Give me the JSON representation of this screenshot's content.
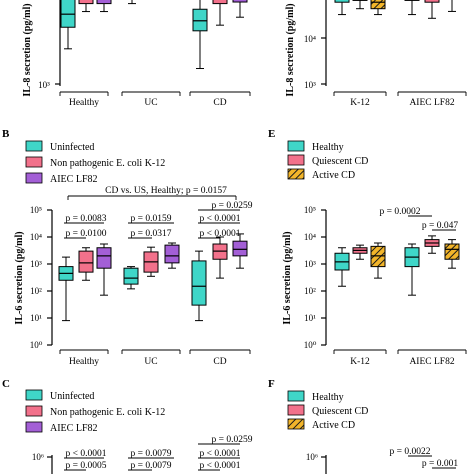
{
  "colors": {
    "uninfected": "#3fd6c8",
    "k12": "#f2718b",
    "lf82": "#a35fd6",
    "healthy": "#3fd6c8",
    "quiescent": "#f2718b",
    "active": "#f2b52a"
  },
  "panel_labels": {
    "B": "B",
    "C": "C",
    "E": "E",
    "F": "F"
  },
  "legends": {
    "left": [
      "Uninfected",
      "Non pathogenic E. coli K-12",
      "AIEC LF82"
    ],
    "right": [
      "Healthy",
      "Quiescent CD",
      "Active CD"
    ]
  },
  "chart_data": [
    {
      "id": "top-left",
      "type": "box",
      "ylabel": "IL-8 secretion (pg/ml)",
      "scale": "log",
      "yticks": [
        "10³"
      ],
      "groups": [
        "Healthy",
        "UC",
        "CD"
      ],
      "series": [
        "Uninfected",
        "Non pathogenic E. coli K-12",
        "AIEC LF82"
      ],
      "boxes": [
        {
          "group": "Healthy",
          "series": "Uninfected",
          "min": 6000,
          "q1": 18000,
          "med": 35000,
          "q3": 90000,
          "max": 150000
        },
        {
          "group": "Healthy",
          "series": "Non pathogenic E. coli K-12",
          "min": 40000,
          "q1": 60000,
          "med": 80000,
          "q3": 100000,
          "max": 160000
        },
        {
          "group": "Healthy",
          "series": "AIEC LF82",
          "min": 40000,
          "q1": 60000,
          "med": 80000,
          "q3": 110000,
          "max": 170000
        },
        {
          "group": "UC",
          "series": "Uninfected",
          "min": 60000,
          "q1": 75000,
          "med": 85000,
          "q3": 95000,
          "max": 140000
        },
        {
          "group": "CD",
          "series": "Uninfected",
          "min": 2200,
          "q1": 15000,
          "med": 25000,
          "q3": 45000,
          "max": 120000
        },
        {
          "group": "CD",
          "series": "Non pathogenic E. coli K-12",
          "min": 20000,
          "q1": 60000,
          "med": 85000,
          "q3": 110000,
          "max": 160000
        },
        {
          "group": "CD",
          "series": "AIEC LF82",
          "min": 30000,
          "q1": 65000,
          "med": 90000,
          "q3": 120000,
          "max": 170000
        }
      ]
    },
    {
      "id": "top-right",
      "type": "box",
      "ylabel": "IL-8 secretion (pg/ml)",
      "scale": "log",
      "yticks": [
        "10⁴",
        "10³"
      ],
      "groups": [
        "K-12",
        "AIEC LF82"
      ],
      "series": [
        "Healthy",
        "Quiescent CD",
        "Active CD"
      ],
      "boxes": [
        {
          "group": "K-12",
          "series": "Healthy",
          "min": 30000,
          "q1": 55000,
          "med": 75000,
          "q3": 100000,
          "max": 130000
        },
        {
          "group": "K-12",
          "series": "Quiescent CD",
          "min": 40000,
          "q1": 60000,
          "med": 75000,
          "q3": 100000,
          "max": 130000
        },
        {
          "group": "K-12",
          "series": "Active CD",
          "min": 30000,
          "q1": 40000,
          "med": 55000,
          "q3": 90000,
          "max": 120000
        },
        {
          "group": "AIEC LF82",
          "series": "Healthy",
          "min": 30000,
          "q1": 60000,
          "med": 75000,
          "q3": 100000,
          "max": 130000
        },
        {
          "group": "AIEC LF82",
          "series": "Quiescent CD",
          "min": 25000,
          "q1": 55000,
          "med": 75000,
          "q3": 100000,
          "max": 130000
        },
        {
          "group": "AIEC LF82",
          "series": "Active CD",
          "min": 35000,
          "q1": 70000,
          "med": 85000,
          "q3": 110000,
          "max": 140000
        }
      ]
    },
    {
      "id": "panel-B",
      "type": "box",
      "ylabel": "IL-6 secretion (pg/ml)",
      "scale": "log",
      "ylim": [
        1,
        100000
      ],
      "yticks": [
        "10⁰",
        "10¹",
        "10²",
        "10³",
        "10⁴",
        "10⁵"
      ],
      "groups": [
        "Healthy",
        "UC",
        "CD"
      ],
      "series": [
        "Uninfected",
        "Non pathogenic E. coli K-12",
        "AIEC LF82"
      ],
      "boxes": [
        {
          "group": "Healthy",
          "series": "Uninfected",
          "min": 8,
          "q1": 250,
          "med": 450,
          "q3": 800,
          "max": 1800
        },
        {
          "group": "Healthy",
          "series": "Non pathogenic E. coli K-12",
          "min": 250,
          "q1": 500,
          "med": 1100,
          "q3": 3000,
          "max": 4000
        },
        {
          "group": "Healthy",
          "series": "AIEC LF82",
          "min": 70,
          "q1": 700,
          "med": 2000,
          "q3": 4000,
          "max": 5500
        },
        {
          "group": "UC",
          "series": "Uninfected",
          "min": 120,
          "q1": 180,
          "med": 300,
          "q3": 700,
          "max": 800
        },
        {
          "group": "UC",
          "series": "Non pathogenic E. coli K-12",
          "min": 350,
          "q1": 500,
          "med": 1200,
          "q3": 2800,
          "max": 4200
        },
        {
          "group": "UC",
          "series": "AIEC LF82",
          "min": 700,
          "q1": 1100,
          "med": 2000,
          "q3": 5000,
          "max": 6000
        },
        {
          "group": "CD",
          "series": "Uninfected",
          "min": 8,
          "q1": 30,
          "med": 150,
          "q3": 1300,
          "max": 3000
        },
        {
          "group": "CD",
          "series": "Non pathogenic E. coli K-12",
          "min": 300,
          "q1": 1500,
          "med": 3000,
          "q3": 5500,
          "max": 10000
        },
        {
          "group": "CD",
          "series": "AIEC LF82",
          "min": 700,
          "q1": 2000,
          "med": 3500,
          "q3": 7000,
          "max": 13000
        }
      ],
      "annotations": [
        "CD vs. US, Healthy; p = 0.0157",
        "p = 0.0083",
        "p = 0.0100",
        "p = 0.0159",
        "p = 0.0317",
        "p = 0.0259",
        "p < 0.0001",
        "p < 0.0001"
      ]
    },
    {
      "id": "panel-E",
      "type": "box",
      "ylabel": "IL-6 secretion (pg/ml)",
      "scale": "log",
      "ylim": [
        1,
        100000
      ],
      "yticks": [
        "10⁰",
        "10¹",
        "10²",
        "10³",
        "10⁴",
        "10⁵"
      ],
      "groups": [
        "K-12",
        "AIEC LF82"
      ],
      "series": [
        "Healthy",
        "Quiescent CD",
        "Active CD"
      ],
      "boxes": [
        {
          "group": "K-12",
          "series": "Healthy",
          "min": 150,
          "q1": 600,
          "med": 1200,
          "q3": 2500,
          "max": 4000
        },
        {
          "group": "K-12",
          "series": "Quiescent CD",
          "min": 1500,
          "q1": 2500,
          "med": 3200,
          "q3": 4000,
          "max": 5000
        },
        {
          "group": "K-12",
          "series": "Active CD",
          "min": 300,
          "q1": 800,
          "med": 2000,
          "q3": 4500,
          "max": 6000
        },
        {
          "group": "AIEC LF82",
          "series": "Healthy",
          "min": 70,
          "q1": 800,
          "med": 1800,
          "q3": 4000,
          "max": 5500
        },
        {
          "group": "AIEC LF82",
          "series": "Quiescent CD",
          "min": 2500,
          "q1": 4500,
          "med": 6000,
          "q3": 8000,
          "max": 11000
        },
        {
          "group": "AIEC LF82",
          "series": "Active CD",
          "min": 700,
          "q1": 1500,
          "med": 3500,
          "q3": 5500,
          "max": 8000
        }
      ],
      "annotations": [
        "p = 0.0002",
        "p = 0.047"
      ]
    },
    {
      "id": "panel-C",
      "type": "box",
      "yticks": [
        "10⁶"
      ],
      "annotations": [
        "p < 0.0001",
        "p = 0.0005",
        "p = 0.0079",
        "p = 0.0079",
        "p = 0.0259",
        "p < 0.0001",
        "p < 0.0001"
      ]
    },
    {
      "id": "panel-F",
      "type": "box",
      "yticks": [
        "10⁶"
      ],
      "annotations": [
        "p = 0.0022",
        "p = 0.001"
      ]
    }
  ]
}
